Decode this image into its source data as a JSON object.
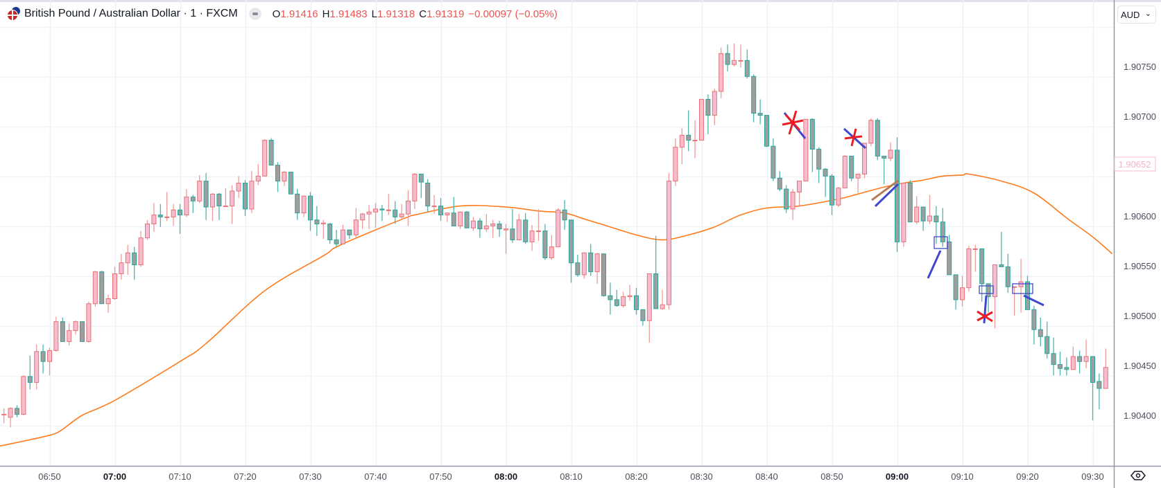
{
  "header": {
    "title": "British Pound / Australian Dollar · 1 · FXCM",
    "open_label": "O",
    "open": "1.91416",
    "high_label": "H",
    "high": "1.91483",
    "low_label": "L",
    "low": "1.91318",
    "close_label": "C",
    "close": "1.91319",
    "change": "−0.00097 (−0.05%)"
  },
  "currency_selector": "AUD",
  "icons": {
    "symbol": "gbp-aud-flag-icon",
    "collapse": "minus-pill-icon",
    "settings": "eye-settings-icon"
  },
  "colors": {
    "up_body": "#f8bbd0",
    "up_border": "#e57373",
    "down_body": "#9e9e9e",
    "down_border": "#26a69a",
    "ma_line": "#ff7a1a",
    "price_badge": "#f8bbd0",
    "drawing_blue": "#3f48cc",
    "drawing_red": "#ed1c24",
    "drawing_brown": "#b97a57"
  },
  "chart_data": {
    "type": "candlestick",
    "title": "British Pound / Australian Dollar · 1 · FXCM",
    "interval_minutes": 1,
    "first_time": "06:43",
    "ylim": [
      1.9035,
      1.908
    ],
    "grid": true,
    "price_axis_labels": [
      "1.90750",
      "1.90700",
      "1.90600",
      "1.90550",
      "1.90500",
      "1.90450",
      "1.90400"
    ],
    "price_axis_values": [
      1.9075,
      1.907,
      1.906,
      1.9055,
      1.905,
      1.9045,
      1.904
    ],
    "current_price_label": "1.90652",
    "current_price": 1.90652,
    "time_axis_labels": [
      "06:50",
      "07:00",
      "07:10",
      "07:20",
      "07:30",
      "07:40",
      "07:50",
      "08:00",
      "08:10",
      "08:20",
      "08:30",
      "08:40",
      "08:50",
      "09:00",
      "09:10",
      "09:20",
      "09:30"
    ],
    "time_axis_bold": [
      "07:00",
      "08:00",
      "09:00"
    ],
    "candles_ohlc": [
      [
        1.90401,
        1.90407,
        1.90392,
        1.90401
      ],
      [
        1.90398,
        1.90408,
        1.90388,
        1.90407
      ],
      [
        1.90407,
        1.9041,
        1.90398,
        1.90401
      ],
      [
        1.90401,
        1.9044,
        1.904,
        1.90439
      ],
      [
        1.90439,
        1.9046,
        1.90426,
        1.90433
      ],
      [
        1.90433,
        1.90471,
        1.90426,
        1.90464
      ],
      [
        1.90464,
        1.90471,
        1.90442,
        1.90454
      ],
      [
        1.90454,
        1.90468,
        1.9044,
        1.90465
      ],
      [
        1.90465,
        1.90499,
        1.90464,
        1.90494
      ],
      [
        1.90494,
        1.90498,
        1.90474,
        1.90474
      ],
      [
        1.90474,
        1.90492,
        1.9047,
        1.90485
      ],
      [
        1.90485,
        1.90495,
        1.90481,
        1.90494
      ],
      [
        1.90494,
        1.90494,
        1.90474,
        1.90474
      ],
      [
        1.90474,
        1.90514,
        1.90473,
        1.90512
      ],
      [
        1.90512,
        1.90545,
        1.90509,
        1.90544
      ],
      [
        1.90544,
        1.90545,
        1.90512,
        1.90512
      ],
      [
        1.90512,
        1.90521,
        1.90503,
        1.90517
      ],
      [
        1.90517,
        1.90549,
        1.90516,
        1.90542
      ],
      [
        1.90542,
        1.90562,
        1.90536,
        1.90553
      ],
      [
        1.90553,
        1.90571,
        1.90541,
        1.90563
      ],
      [
        1.90563,
        1.90569,
        1.90536,
        1.90551
      ],
      [
        1.90551,
        1.90585,
        1.90549,
        1.90578
      ],
      [
        1.90578,
        1.90596,
        1.90576,
        1.90592
      ],
      [
        1.90592,
        1.90613,
        1.90584,
        1.90601
      ],
      [
        1.90601,
        1.90612,
        1.90589,
        1.90599
      ],
      [
        1.90599,
        1.90624,
        1.90595,
        1.90599
      ],
      [
        1.90599,
        1.90612,
        1.9059,
        1.90606
      ],
      [
        1.90606,
        1.90612,
        1.90582,
        1.90601
      ],
      [
        1.90601,
        1.90627,
        1.90599,
        1.90619
      ],
      [
        1.90619,
        1.90621,
        1.90603,
        1.90615
      ],
      [
        1.90615,
        1.90641,
        1.90613,
        1.90635
      ],
      [
        1.90635,
        1.90643,
        1.90596,
        1.90609
      ],
      [
        1.90609,
        1.90623,
        1.90595,
        1.90622
      ],
      [
        1.90622,
        1.90623,
        1.90596,
        1.9061
      ],
      [
        1.9061,
        1.90628,
        1.9061,
        1.9061
      ],
      [
        1.9061,
        1.90631,
        1.90592,
        1.90625
      ],
      [
        1.90625,
        1.9064,
        1.90618,
        1.90633
      ],
      [
        1.90633,
        1.90636,
        1.906,
        1.90607
      ],
      [
        1.90607,
        1.90645,
        1.90603,
        1.90635
      ],
      [
        1.90635,
        1.90652,
        1.90631,
        1.9064
      ],
      [
        1.9064,
        1.90677,
        1.9064,
        1.90676
      ],
      [
        1.90676,
        1.90678,
        1.90651,
        1.90651
      ],
      [
        1.90651,
        1.90654,
        1.90624,
        1.90635
      ],
      [
        1.90635,
        1.90645,
        1.9063,
        1.90644
      ],
      [
        1.90644,
        1.90644,
        1.90622,
        1.90622
      ],
      [
        1.90622,
        1.90627,
        1.90596,
        1.90603
      ],
      [
        1.90603,
        1.9062,
        1.90599,
        1.9062
      ],
      [
        1.9062,
        1.90624,
        1.90585,
        1.90596
      ],
      [
        1.90596,
        1.9061,
        1.9058,
        1.90592
      ],
      [
        1.90592,
        1.90596,
        1.90577,
        1.90593
      ],
      [
        1.90592,
        1.90593,
        1.90572,
        1.90576
      ],
      [
        1.90576,
        1.90586,
        1.90569,
        1.90572
      ],
      [
        1.90572,
        1.90591,
        1.90572,
        1.90586
      ],
      [
        1.90586,
        1.90586,
        1.90577,
        1.90581
      ],
      [
        1.90581,
        1.90608,
        1.90578,
        1.90596
      ],
      [
        1.90596,
        1.90603,
        1.90587,
        1.90602
      ],
      [
        1.90602,
        1.90611,
        1.90587,
        1.90604
      ],
      [
        1.90604,
        1.90613,
        1.90588,
        1.90607
      ],
      [
        1.90607,
        1.90611,
        1.90595,
        1.90606
      ],
      [
        1.90606,
        1.90622,
        1.90601,
        1.90606
      ],
      [
        1.90606,
        1.90615,
        1.90592,
        1.90599
      ],
      [
        1.90599,
        1.90612,
        1.90596,
        1.90602
      ],
      [
        1.90602,
        1.90626,
        1.9059,
        1.90615
      ],
      [
        1.90615,
        1.90643,
        1.90607,
        1.90642
      ],
      [
        1.90642,
        1.90642,
        1.90618,
        1.90634
      ],
      [
        1.90633,
        1.90637,
        1.90604,
        1.9061
      ],
      [
        1.9061,
        1.90621,
        1.90602,
        1.9061
      ],
      [
        1.9061,
        1.90618,
        1.90595,
        1.90601
      ],
      [
        1.90601,
        1.90603,
        1.90594,
        1.90603
      ],
      [
        1.90603,
        1.90619,
        1.9059,
        1.9059
      ],
      [
        1.9059,
        1.90604,
        1.90587,
        1.90604
      ],
      [
        1.90604,
        1.90605,
        1.90588,
        1.90588
      ],
      [
        1.90588,
        1.90599,
        1.90585,
        1.90595
      ],
      [
        1.90595,
        1.90598,
        1.90578,
        1.90587
      ],
      [
        1.90587,
        1.90602,
        1.90584,
        1.9059
      ],
      [
        1.9059,
        1.90596,
        1.90578,
        1.90592
      ],
      [
        1.90592,
        1.90595,
        1.90579,
        1.90587
      ],
      [
        1.90586,
        1.90592,
        1.90562,
        1.90587
      ],
      [
        1.90587,
        1.90607,
        1.90573,
        1.90576
      ],
      [
        1.90576,
        1.90602,
        1.90576,
        1.90596
      ],
      [
        1.90596,
        1.90603,
        1.90572,
        1.90574
      ],
      [
        1.90574,
        1.90591,
        1.90565,
        1.90585
      ],
      [
        1.90585,
        1.90607,
        1.90575,
        1.90585
      ],
      [
        1.90585,
        1.90592,
        1.90556,
        1.90558
      ],
      [
        1.90558,
        1.90581,
        1.90556,
        1.90569
      ],
      [
        1.90569,
        1.90608,
        1.90569,
        1.90606
      ],
      [
        1.90606,
        1.90616,
        1.90586,
        1.90596
      ],
      [
        1.90596,
        1.90596,
        1.90533,
        1.90553
      ],
      [
        1.90553,
        1.90561,
        1.90539,
        1.90541
      ],
      [
        1.90541,
        1.90563,
        1.90537,
        1.90563
      ],
      [
        1.90563,
        1.90572,
        1.9054,
        1.90544
      ],
      [
        1.90544,
        1.90563,
        1.90532,
        1.90562
      ],
      [
        1.90562,
        1.90562,
        1.90519,
        1.9052
      ],
      [
        1.9052,
        1.90533,
        1.90501,
        1.90516
      ],
      [
        1.90516,
        1.90526,
        1.90509,
        1.9051
      ],
      [
        1.9051,
        1.90524,
        1.90508,
        1.90519
      ],
      [
        1.90519,
        1.90531,
        1.90515,
        1.9052
      ],
      [
        1.9052,
        1.90528,
        1.90501,
        1.90506
      ],
      [
        1.90506,
        1.90506,
        1.9049,
        1.90495
      ],
      [
        1.90495,
        1.90542,
        1.90473,
        1.90542
      ],
      [
        1.90542,
        1.9058,
        1.90507,
        1.90507
      ],
      [
        1.90507,
        1.90526,
        1.90506,
        1.90511
      ],
      [
        1.90511,
        1.90643,
        1.90506,
        1.90635
      ],
      [
        1.90635,
        1.90678,
        1.9063,
        1.90669
      ],
      [
        1.90669,
        1.90688,
        1.90652,
        1.90681
      ],
      [
        1.90681,
        1.90706,
        1.90665,
        1.90676
      ],
      [
        1.90676,
        1.90696,
        1.90658,
        1.90676
      ],
      [
        1.90676,
        1.90717,
        1.90676,
        1.90717
      ],
      [
        1.90717,
        1.90722,
        1.90682,
        1.90701
      ],
      [
        1.90701,
        1.90728,
        1.90691,
        1.90725
      ],
      [
        1.90725,
        1.90769,
        1.90718,
        1.90763
      ],
      [
        1.90763,
        1.90772,
        1.90745,
        1.90752
      ],
      [
        1.90752,
        1.90773,
        1.9075,
        1.90756
      ],
      [
        1.90756,
        1.90772,
        1.90749,
        1.90756
      ],
      [
        1.90756,
        1.90767,
        1.90738,
        1.9074
      ],
      [
        1.9074,
        1.90742,
        1.90694,
        1.90703
      ],
      [
        1.90703,
        1.90717,
        1.90692,
        1.90701
      ],
      [
        1.90701,
        1.90701,
        1.90669,
        1.9067
      ],
      [
        1.9067,
        1.90678,
        1.90635,
        1.90638
      ],
      [
        1.90638,
        1.90645,
        1.90625,
        1.90627
      ],
      [
        1.90627,
        1.90631,
        1.90603,
        1.90607
      ],
      [
        1.90607,
        1.90627,
        1.90596,
        1.90624
      ],
      [
        1.90624,
        1.90635,
        1.90609,
        1.90635
      ],
      [
        1.90635,
        1.90697,
        1.90635,
        1.90697
      ],
      [
        1.90697,
        1.90698,
        1.90644,
        1.90667
      ],
      [
        1.90667,
        1.90669,
        1.90633,
        1.90647
      ],
      [
        1.90647,
        1.90648,
        1.90619,
        1.9064
      ],
      [
        1.9064,
        1.90642,
        1.90601,
        1.90611
      ],
      [
        1.90611,
        1.90629,
        1.90609,
        1.90628
      ],
      [
        1.90628,
        1.90661,
        1.90628,
        1.9066
      ],
      [
        1.9066,
        1.9066,
        1.90635,
        1.90638
      ],
      [
        1.90638,
        1.90642,
        1.90623,
        1.90642
      ],
      [
        1.90642,
        1.90673,
        1.90638,
        1.90673
      ],
      [
        1.90673,
        1.90698,
        1.9067,
        1.90696
      ],
      [
        1.90696,
        1.90698,
        1.90656,
        1.9066
      ],
      [
        1.9066,
        1.9066,
        1.90632,
        1.90658
      ],
      [
        1.90658,
        1.90674,
        1.90655,
        1.90666
      ],
      [
        1.90666,
        1.90679,
        1.90564,
        1.90574
      ],
      [
        1.90574,
        1.90633,
        1.90569,
        1.90633
      ],
      [
        1.90633,
        1.90636,
        1.90594,
        1.90594
      ],
      [
        1.90594,
        1.9062,
        1.90592,
        1.90609
      ],
      [
        1.90609,
        1.90609,
        1.90585,
        1.90595
      ],
      [
        1.90595,
        1.90621,
        1.90592,
        1.906
      ],
      [
        1.906,
        1.9061,
        1.90572,
        1.90594
      ],
      [
        1.90594,
        1.90608,
        1.90569,
        1.90574
      ],
      [
        1.90574,
        1.90581,
        1.90541,
        1.90541
      ],
      [
        1.90541,
        1.90541,
        1.90506,
        1.90516
      ],
      [
        1.90516,
        1.9054,
        1.90509,
        1.90528
      ],
      [
        1.90528,
        1.9057,
        1.90524,
        1.90567
      ],
      [
        1.90567,
        1.90571,
        1.90544,
        1.90567
      ],
      [
        1.90567,
        1.90567,
        1.90514,
        1.90532
      ],
      [
        1.90532,
        1.90532,
        1.90503,
        1.90519
      ],
      [
        1.90519,
        1.90551,
        1.90487,
        1.90551
      ],
      [
        1.90551,
        1.90584,
        1.90549,
        1.90549
      ],
      [
        1.90549,
        1.90562,
        1.90523,
        1.90529
      ],
      [
        1.90529,
        1.90529,
        1.905,
        1.90529
      ],
      [
        1.90529,
        1.90557,
        1.90503,
        1.90534
      ],
      [
        1.90534,
        1.9054,
        1.90506,
        1.90506
      ],
      [
        1.90506,
        1.9051,
        1.90471,
        1.90486
      ],
      [
        1.90486,
        1.90498,
        1.90469,
        1.90479
      ],
      [
        1.90479,
        1.90494,
        1.90457,
        1.90462
      ],
      [
        1.90462,
        1.90478,
        1.9044,
        1.90451
      ],
      [
        1.90451,
        1.90464,
        1.9044,
        1.90447
      ],
      [
        1.90448,
        1.90458,
        1.9044,
        1.90446
      ],
      [
        1.90446,
        1.90469,
        1.90446,
        1.90459
      ],
      [
        1.90459,
        1.90465,
        1.90442,
        1.90454
      ],
      [
        1.90454,
        1.90476,
        1.90447,
        1.90459
      ],
      [
        1.90459,
        1.90459,
        1.90395,
        1.90433
      ],
      [
        1.90434,
        1.90442,
        1.90406,
        1.90427
      ],
      [
        1.90427,
        1.90467,
        1.90427,
        1.90448
      ]
    ],
    "series": [
      {
        "name": "Moving average",
        "type": "line",
        "points": [
          [
            "06:43",
            1.9037
          ],
          [
            "06:50",
            1.9038
          ],
          [
            "06:52",
            1.90386
          ],
          [
            "06:55",
            1.904
          ],
          [
            "07:00",
            1.90415
          ],
          [
            "07:10",
            1.90454
          ],
          [
            "07:14",
            1.90472
          ],
          [
            "07:23",
            1.90525
          ],
          [
            "07:32",
            1.9056
          ],
          [
            "07:34",
            1.90569
          ],
          [
            "07:40",
            1.90586
          ],
          [
            "07:45",
            1.90599
          ],
          [
            "07:46",
            1.90601
          ],
          [
            "07:53",
            1.9061
          ],
          [
            "08:00",
            1.90609
          ],
          [
            "08:05",
            1.90605
          ],
          [
            "08:09",
            1.90603
          ],
          [
            "08:12",
            1.90597
          ],
          [
            "08:16",
            1.90589
          ],
          [
            "08:20",
            1.90581
          ],
          [
            "08:24",
            1.90576
          ],
          [
            "08:28",
            1.90581
          ],
          [
            "08:32",
            1.90589
          ],
          [
            "08:36",
            1.90601
          ],
          [
            "08:40",
            1.90608
          ],
          [
            "08:45",
            1.9061
          ],
          [
            "08:51",
            1.90617
          ],
          [
            "08:54",
            1.90622
          ],
          [
            "08:58",
            1.90629
          ],
          [
            "09:01",
            1.90633
          ],
          [
            "09:04",
            1.90636
          ],
          [
            "09:07",
            1.9064
          ],
          [
            "09:10",
            1.90641
          ],
          [
            "09:11",
            1.90642
          ],
          [
            "09:16",
            1.90635
          ],
          [
            "09:21",
            1.90623
          ],
          [
            "09:26",
            1.90598
          ],
          [
            "09:30",
            1.90579
          ],
          [
            "09:33",
            1.90562
          ]
        ]
      }
    ]
  }
}
